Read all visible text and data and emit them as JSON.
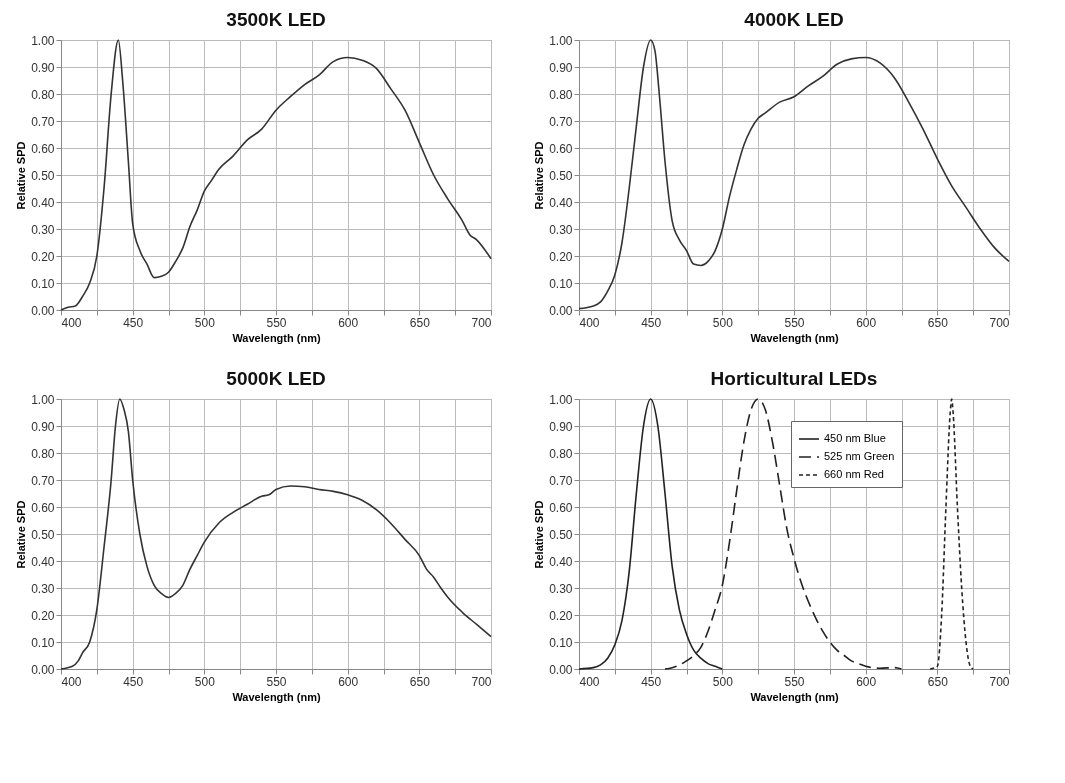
{
  "chart_data": [
    {
      "type": "line",
      "title": "3500K LED",
      "xlabel": "Wavelength (nm)",
      "ylabel": "Relative SPD",
      "xlim": [
        400,
        700
      ],
      "ylim": [
        0,
        1
      ],
      "xticks": [
        400,
        {
          "value": 425,
          "label": null
        },
        450,
        {
          "value": 475,
          "label": null
        },
        500,
        {
          "value": 525,
          "label": null
        },
        550,
        {
          "value": 575,
          "label": null
        },
        600,
        {
          "value": 625,
          "label": null
        },
        650,
        {
          "value": 675,
          "label": null
        },
        700
      ],
      "yticks": [
        {
          "value": 0,
          "label": "0.00"
        },
        {
          "value": 0.1,
          "label": "0.10"
        },
        {
          "value": 0.2,
          "label": "0.20"
        },
        {
          "value": 0.3,
          "label": "0.30"
        },
        {
          "value": 0.4,
          "label": "0.40"
        },
        {
          "value": 0.5,
          "label": "0.50"
        },
        {
          "value": 0.6,
          "label": "0.60"
        },
        {
          "value": 0.7,
          "label": "0.70"
        },
        {
          "value": 0.8,
          "label": "0.80"
        },
        {
          "value": 0.9,
          "label": "0.90"
        },
        {
          "value": 1,
          "label": "1.00"
        }
      ],
      "grid": true,
      "series": [
        {
          "color": "#333333",
          "line_style": "solid",
          "x": [
            400,
            405,
            410,
            415,
            420,
            425,
            430,
            435,
            440,
            443,
            447,
            450,
            455,
            460,
            465,
            470,
            475,
            480,
            485,
            490,
            495,
            500,
            505,
            510,
            520,
            530,
            540,
            550,
            560,
            570,
            580,
            590,
            600,
            610,
            620,
            630,
            640,
            650,
            660,
            670,
            680,
            685,
            690,
            700
          ],
          "values": [
            0,
            0.01,
            0.015,
            0.05,
            0.1,
            0.2,
            0.45,
            0.8,
            1.0,
            0.85,
            0.55,
            0.32,
            0.22,
            0.17,
            0.12,
            0.125,
            0.14,
            0.18,
            0.23,
            0.31,
            0.37,
            0.44,
            0.48,
            0.52,
            0.57,
            0.63,
            0.67,
            0.74,
            0.79,
            0.835,
            0.87,
            0.92,
            0.935,
            0.925,
            0.895,
            0.82,
            0.74,
            0.62,
            0.5,
            0.41,
            0.33,
            0.28,
            0.26,
            0.19
          ]
        }
      ]
    },
    {
      "type": "line",
      "title": "4000K LED",
      "xlabel": "Wavelength (nm)",
      "ylabel": "Relative SPD",
      "xlim": [
        400,
        700
      ],
      "ylim": [
        0,
        1
      ],
      "xticks": [
        400,
        {
          "value": 425,
          "label": null
        },
        450,
        {
          "value": 475,
          "label": null
        },
        500,
        {
          "value": 525,
          "label": null
        },
        550,
        {
          "value": 575,
          "label": null
        },
        600,
        {
          "value": 625,
          "label": null
        },
        650,
        {
          "value": 675,
          "label": null
        },
        700
      ],
      "yticks": [
        {
          "value": 0,
          "label": "0.00"
        },
        {
          "value": 0.1,
          "label": "0.10"
        },
        {
          "value": 0.2,
          "label": "0.20"
        },
        {
          "value": 0.3,
          "label": "0.30"
        },
        {
          "value": 0.4,
          "label": "0.40"
        },
        {
          "value": 0.5,
          "label": "0.50"
        },
        {
          "value": 0.6,
          "label": "0.60"
        },
        {
          "value": 0.7,
          "label": "0.70"
        },
        {
          "value": 0.8,
          "label": "0.80"
        },
        {
          "value": 0.9,
          "label": "0.90"
        },
        {
          "value": 1,
          "label": "1.00"
        }
      ],
      "grid": true,
      "series": [
        {
          "color": "#333333",
          "line_style": "solid",
          "x": [
            400,
            410,
            415,
            420,
            425,
            430,
            435,
            440,
            445,
            450,
            453,
            456,
            460,
            465,
            470,
            475,
            480,
            485,
            490,
            495,
            500,
            505,
            510,
            515,
            520,
            525,
            530,
            540,
            550,
            560,
            570,
            580,
            590,
            600,
            610,
            620,
            630,
            640,
            650,
            660,
            670,
            680,
            690,
            700
          ],
          "values": [
            0.005,
            0.015,
            0.03,
            0.07,
            0.13,
            0.25,
            0.45,
            0.68,
            0.9,
            1.0,
            0.96,
            0.8,
            0.55,
            0.33,
            0.26,
            0.22,
            0.17,
            0.165,
            0.18,
            0.22,
            0.3,
            0.42,
            0.52,
            0.61,
            0.67,
            0.71,
            0.73,
            0.77,
            0.79,
            0.83,
            0.865,
            0.91,
            0.93,
            0.935,
            0.915,
            0.86,
            0.77,
            0.67,
            0.56,
            0.46,
            0.38,
            0.3,
            0.23,
            0.18
          ]
        }
      ]
    },
    {
      "type": "line",
      "title": "5000K LED",
      "xlabel": "Wavelength (nm)",
      "ylabel": "Relative SPD",
      "xlim": [
        400,
        700
      ],
      "ylim": [
        0,
        1
      ],
      "xticks": [
        400,
        {
          "value": 425,
          "label": null
        },
        450,
        {
          "value": 475,
          "label": null
        },
        500,
        {
          "value": 525,
          "label": null
        },
        550,
        {
          "value": 575,
          "label": null
        },
        600,
        {
          "value": 625,
          "label": null
        },
        650,
        {
          "value": 675,
          "label": null
        },
        700
      ],
      "yticks": [
        {
          "value": 0,
          "label": "0.00"
        },
        {
          "value": 0.1,
          "label": "0.10"
        },
        {
          "value": 0.2,
          "label": "0.20"
        },
        {
          "value": 0.3,
          "label": "0.30"
        },
        {
          "value": 0.4,
          "label": "0.40"
        },
        {
          "value": 0.5,
          "label": "0.50"
        },
        {
          "value": 0.6,
          "label": "0.60"
        },
        {
          "value": 0.7,
          "label": "0.70"
        },
        {
          "value": 0.8,
          "label": "0.80"
        },
        {
          "value": 0.9,
          "label": "0.90"
        },
        {
          "value": 1,
          "label": "1.00"
        }
      ],
      "grid": true,
      "series": [
        {
          "color": "#333333",
          "line_style": "solid",
          "x": [
            400,
            408,
            412,
            415,
            420,
            425,
            430,
            435,
            438,
            441,
            444,
            447,
            450,
            455,
            460,
            465,
            470,
            475,
            480,
            485,
            490,
            495,
            500,
            510,
            520,
            530,
            540,
            545,
            550,
            560,
            570,
            580,
            590,
            600,
            610,
            620,
            630,
            640,
            650,
            655,
            660,
            665,
            670,
            680,
            690,
            700
          ],
          "values": [
            0,
            0.01,
            0.03,
            0.06,
            0.1,
            0.22,
            0.45,
            0.7,
            0.9,
            1.0,
            0.96,
            0.88,
            0.7,
            0.5,
            0.38,
            0.31,
            0.28,
            0.265,
            0.28,
            0.31,
            0.37,
            0.42,
            0.47,
            0.54,
            0.58,
            0.61,
            0.64,
            0.645,
            0.665,
            0.678,
            0.675,
            0.665,
            0.658,
            0.645,
            0.625,
            0.59,
            0.54,
            0.48,
            0.42,
            0.37,
            0.34,
            0.3,
            0.265,
            0.21,
            0.165,
            0.12
          ]
        }
      ]
    },
    {
      "type": "line",
      "title": "Horticultural LEDs",
      "xlabel": "Wavelength (nm)",
      "ylabel": "Relative SPD",
      "xlim": [
        400,
        700
      ],
      "ylim": [
        0,
        1
      ],
      "xticks": [
        400,
        {
          "value": 425,
          "label": null
        },
        450,
        {
          "value": 475,
          "label": null
        },
        500,
        {
          "value": 525,
          "label": null
        },
        550,
        {
          "value": 575,
          "label": null
        },
        600,
        {
          "value": 625,
          "label": null
        },
        650,
        {
          "value": 675,
          "label": null
        },
        700
      ],
      "yticks": [
        {
          "value": 0,
          "label": "0.00"
        },
        {
          "value": 0.1,
          "label": "0.10"
        },
        {
          "value": 0.2,
          "label": "0.20"
        },
        {
          "value": 0.3,
          "label": "0.30"
        },
        {
          "value": 0.4,
          "label": "0.40"
        },
        {
          "value": 0.5,
          "label": "0.50"
        },
        {
          "value": 0.6,
          "label": "0.60"
        },
        {
          "value": 0.7,
          "label": "0.70"
        },
        {
          "value": 0.8,
          "label": "0.80"
        },
        {
          "value": 0.9,
          "label": "0.90"
        },
        {
          "value": 1,
          "label": "1.00"
        }
      ],
      "grid": true,
      "legend": "top right",
      "series": [
        {
          "name": "450 nm Blue",
          "color": "#222222",
          "line_style": "solid",
          "x": [
            400,
            410,
            415,
            420,
            425,
            430,
            435,
            440,
            445,
            450,
            455,
            460,
            465,
            470,
            475,
            480,
            485,
            490,
            495,
            500
          ],
          "values": [
            0,
            0.005,
            0.015,
            0.04,
            0.09,
            0.18,
            0.36,
            0.65,
            0.9,
            1.0,
            0.9,
            0.65,
            0.38,
            0.22,
            0.13,
            0.07,
            0.04,
            0.02,
            0.01,
            0
          ]
        },
        {
          "name": "525 nm Green",
          "color": "#222222",
          "line_style": "dashed",
          "x": [
            460,
            465,
            470,
            475,
            480,
            485,
            490,
            495,
            500,
            505,
            510,
            515,
            520,
            525,
            530,
            535,
            540,
            545,
            550,
            555,
            560,
            565,
            570,
            575,
            580,
            585,
            590,
            595,
            600,
            610,
            620,
            625
          ],
          "values": [
            0,
            0.005,
            0.015,
            0.03,
            0.05,
            0.08,
            0.14,
            0.22,
            0.31,
            0.47,
            0.66,
            0.84,
            0.96,
            1.0,
            0.96,
            0.84,
            0.68,
            0.52,
            0.41,
            0.32,
            0.25,
            0.19,
            0.14,
            0.1,
            0.07,
            0.05,
            0.03,
            0.02,
            0.01,
            0.003,
            0.005,
            0
          ]
        },
        {
          "name": "660 nm Red",
          "color": "#222222",
          "line_style": "dotted",
          "x": [
            645,
            650,
            653,
            656,
            659,
            660,
            661,
            664,
            667,
            670,
            673,
            675
          ],
          "values": [
            0,
            0.01,
            0.2,
            0.6,
            0.95,
            1.0,
            0.95,
            0.6,
            0.3,
            0.1,
            0.01,
            0
          ]
        }
      ]
    }
  ]
}
